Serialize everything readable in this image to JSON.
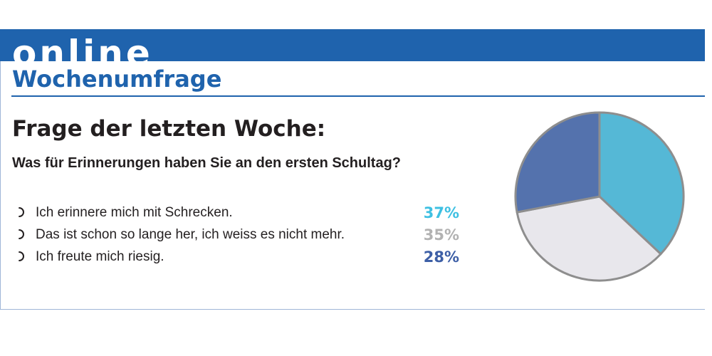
{
  "header": {
    "brand": "online",
    "section_title": "Wochenumfrage"
  },
  "poll": {
    "heading": "Frage der letzten Woche:",
    "question": "Was für Erinnerungen haben Sie an den ersten Schultag?",
    "bullet_icon": "radio-circle-icon"
  },
  "colors": {
    "brand_blue": "#1f63ad",
    "text": "#231f20",
    "pie_border": "#8e8e8e"
  },
  "chart_data": {
    "type": "pie",
    "title": "",
    "slices": [
      {
        "label": "Ich erinnere mich mit Schrecken.",
        "value": 37,
        "value_label": "37%",
        "color": "#55b8d6",
        "label_color": "#3ec0e2"
      },
      {
        "label": "Das ist schon so lange her, ich weiss es nicht mehr.",
        "value": 35,
        "value_label": "35%",
        "color": "#e8e7ec",
        "label_color": "#b2b2b2"
      },
      {
        "label": "Ich freute mich riesig.",
        "value": 28,
        "value_label": "28%",
        "color": "#5472ad",
        "label_color": "#3d5fa6"
      }
    ],
    "start_angle": "12 o'clock",
    "direction": "clockwise",
    "legend": "left"
  }
}
